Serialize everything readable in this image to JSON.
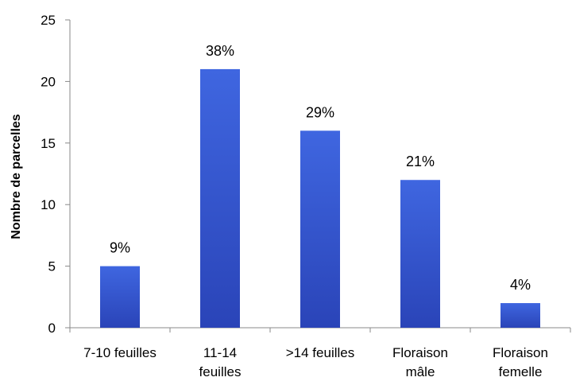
{
  "chart_data": {
    "type": "bar",
    "title": "",
    "xlabel": "",
    "ylabel": "Nombre de parcelles",
    "ylim": [
      0,
      25
    ],
    "yticks": [
      0,
      5,
      10,
      15,
      20,
      25
    ],
    "grid": false,
    "legend": "none",
    "categories": [
      [
        "7-10 feuilles"
      ],
      [
        "11-14",
        "feuilles"
      ],
      [
        ">14 feuilles"
      ],
      [
        "Floraison",
        "mâle"
      ],
      [
        "Floraison",
        "femelle"
      ]
    ],
    "values": [
      5,
      21,
      16,
      12,
      2
    ],
    "data_labels": [
      "9%",
      "38%",
      "29%",
      "21%",
      "4%"
    ],
    "bar_color_top": "#3f66e0",
    "bar_color_bottom": "#2a44b8"
  }
}
